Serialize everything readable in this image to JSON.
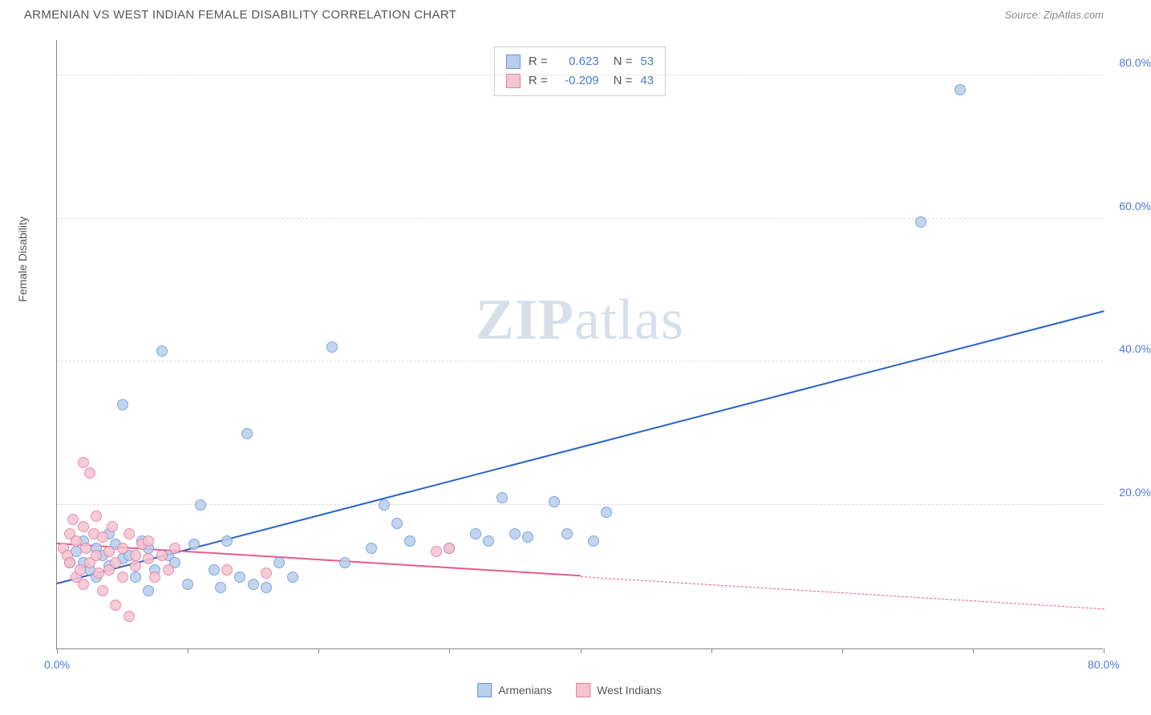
{
  "header": {
    "title": "ARMENIAN VS WEST INDIAN FEMALE DISABILITY CORRELATION CHART",
    "source": "Source: ZipAtlas.com"
  },
  "chart": {
    "type": "scatter",
    "ylabel": "Female Disability",
    "background_color": "#ffffff",
    "grid_color": "#dddddd",
    "axis_color": "#888888",
    "xlim": [
      0,
      80
    ],
    "ylim": [
      0,
      85
    ],
    "yticks": [
      20,
      40,
      60,
      80
    ],
    "ytick_labels": [
      "20.0%",
      "40.0%",
      "60.0%",
      "80.0%"
    ],
    "ytick_color": "#4a7bd4",
    "xticks": [
      0,
      10,
      20,
      30,
      40,
      50,
      60,
      70,
      80
    ],
    "xtick_labels": {
      "0": "0.0%",
      "80": "80.0%"
    },
    "xtick_color": "#4a7bd4",
    "watermark": {
      "bold": "ZIP",
      "rest": "atlas"
    },
    "series": [
      {
        "name": "Armenians",
        "fill": "#b8ceec",
        "stroke": "#6a98d8",
        "radius": 7,
        "trend": {
          "color": "#2a63c8",
          "width": 2,
          "x0": 0,
          "y0": 9,
          "x1": 80,
          "y1": 47,
          "dash_after_x": 80
        },
        "R": "0.623",
        "N": "53",
        "points": [
          [
            1,
            12
          ],
          [
            1.5,
            13.5
          ],
          [
            2,
            15
          ],
          [
            2,
            12
          ],
          [
            2.5,
            11
          ],
          [
            3,
            14
          ],
          [
            3,
            10
          ],
          [
            3.5,
            13
          ],
          [
            4,
            16
          ],
          [
            4,
            11.5
          ],
          [
            4.5,
            14.5
          ],
          [
            5,
            12.5
          ],
          [
            5,
            34
          ],
          [
            5.5,
            13
          ],
          [
            6,
            10
          ],
          [
            6.5,
            15
          ],
          [
            7,
            8
          ],
          [
            7,
            14
          ],
          [
            7.5,
            11
          ],
          [
            8,
            41.5
          ],
          [
            8.5,
            13
          ],
          [
            9,
            12
          ],
          [
            10,
            9
          ],
          [
            10.5,
            14.5
          ],
          [
            11,
            20
          ],
          [
            12,
            11
          ],
          [
            12.5,
            8.5
          ],
          [
            13,
            15
          ],
          [
            14,
            10
          ],
          [
            14.5,
            30
          ],
          [
            15,
            9
          ],
          [
            16,
            8.5
          ],
          [
            17,
            12
          ],
          [
            18,
            10
          ],
          [
            21,
            42
          ],
          [
            22,
            12
          ],
          [
            24,
            14
          ],
          [
            25,
            20
          ],
          [
            26,
            17.5
          ],
          [
            27,
            15
          ],
          [
            30,
            14
          ],
          [
            32,
            16
          ],
          [
            33,
            15
          ],
          [
            34,
            21
          ],
          [
            35,
            16
          ],
          [
            36,
            15.5
          ],
          [
            38,
            20.5
          ],
          [
            39,
            16
          ],
          [
            41,
            15
          ],
          [
            42,
            19
          ],
          [
            66,
            59.5
          ],
          [
            69,
            78
          ]
        ]
      },
      {
        "name": "West Indians",
        "fill": "#f5c4d0",
        "stroke": "#e87ba0",
        "radius": 7,
        "trend": {
          "color": "#e85a8a",
          "width": 2,
          "x0": 0,
          "y0": 14.5,
          "x1": 40,
          "y1": 10,
          "dash_after_x": 40,
          "dash_x1": 80,
          "dash_y1": 5.5
        },
        "R": "-0.209",
        "N": "43",
        "points": [
          [
            0.5,
            14
          ],
          [
            0.8,
            13
          ],
          [
            1,
            16
          ],
          [
            1,
            12
          ],
          [
            1.2,
            18
          ],
          [
            1.5,
            10
          ],
          [
            1.5,
            15
          ],
          [
            1.8,
            11
          ],
          [
            2,
            17
          ],
          [
            2,
            9
          ],
          [
            2,
            26
          ],
          [
            2.2,
            14
          ],
          [
            2.5,
            24.5
          ],
          [
            2.5,
            12
          ],
          [
            2.8,
            16
          ],
          [
            3,
            13
          ],
          [
            3,
            18.5
          ],
          [
            3.2,
            10.5
          ],
          [
            3.5,
            8
          ],
          [
            3.5,
            15.5
          ],
          [
            4,
            13.5
          ],
          [
            4,
            11
          ],
          [
            4.2,
            17
          ],
          [
            4.5,
            12
          ],
          [
            4.5,
            6
          ],
          [
            5,
            14
          ],
          [
            5,
            10
          ],
          [
            5.5,
            16
          ],
          [
            5.5,
            4.5
          ],
          [
            6,
            13
          ],
          [
            6,
            11.5
          ],
          [
            6.5,
            14.5
          ],
          [
            7,
            15
          ],
          [
            7,
            12.5
          ],
          [
            7.5,
            10
          ],
          [
            8,
            13
          ],
          [
            8.5,
            11
          ],
          [
            9,
            14
          ],
          [
            13,
            11
          ],
          [
            16,
            10.5
          ],
          [
            29,
            13.5
          ],
          [
            30,
            14
          ]
        ]
      }
    ],
    "legend": {
      "items": [
        {
          "label": "Armenians",
          "fill": "#b8ceec",
          "stroke": "#6a98d8"
        },
        {
          "label": "West Indians",
          "fill": "#f5c4d0",
          "stroke": "#e87ba0"
        }
      ]
    },
    "stats_box": {
      "rows": [
        {
          "swatch_fill": "#b8ceec",
          "swatch_stroke": "#6a98d8",
          "R": "0.623",
          "N": "53"
        },
        {
          "swatch_fill": "#f5c4d0",
          "swatch_stroke": "#e87ba0",
          "R": "-0.209",
          "N": "43"
        }
      ],
      "R_color": "#4a7bd4",
      "N_color": "#4a7bd4",
      "label_color": "#555555"
    }
  }
}
